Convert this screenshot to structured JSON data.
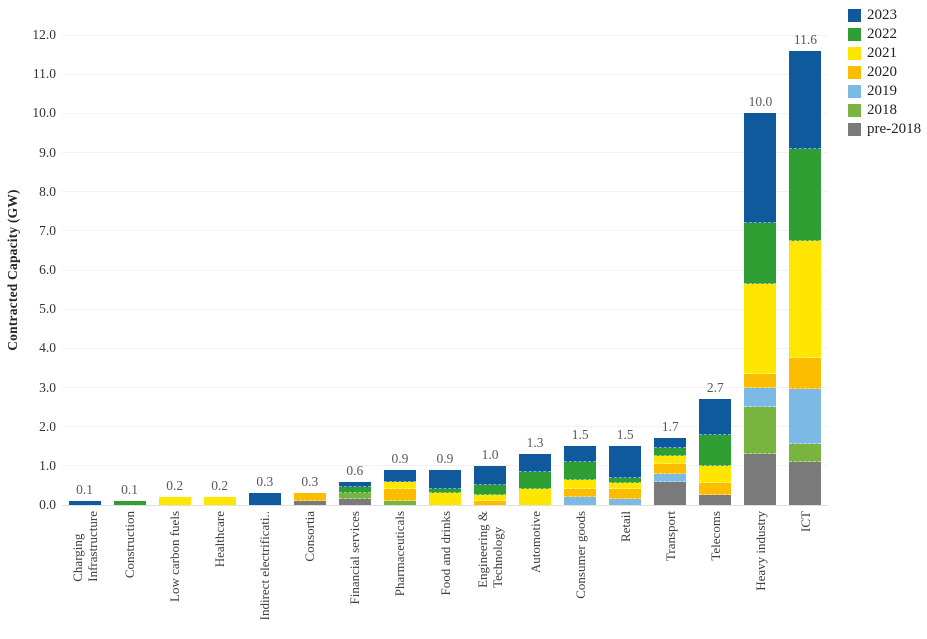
{
  "figure": {
    "background": "#ffffff",
    "grid_color": "#f2f2f2",
    "baseline_color": "#e0e0e0"
  },
  "chart_data": {
    "type": "bar",
    "stacked": true,
    "title": "",
    "xlabel": "",
    "ylabel": "Contracted Capacity (GW)",
    "ylim": [
      0,
      12
    ],
    "ytick_step": 1,
    "yticks": [
      "0.0",
      "1.0",
      "2.0",
      "3.0",
      "4.0",
      "5.0",
      "6.0",
      "7.0",
      "8.0",
      "9.0",
      "10.0",
      "11.0",
      "12.0"
    ],
    "grid": "horizontal",
    "legend_position": "top-right",
    "categories": [
      "Charging\nInfrastructure",
      "Construction",
      "Low carbon fuels",
      "Healthcare",
      "Indirect electrificati..",
      "Consortia",
      "Financial services",
      "Pharmaceuticals",
      "Food and drinks",
      "Engineering &\nTechnology",
      "Automotive",
      "Consumer goods",
      "Retail",
      "Transport",
      "Telecoms",
      "Heavy industry",
      "ICT"
    ],
    "totals": [
      "0.1",
      "0.1",
      "0.2",
      "0.2",
      "0.3",
      "0.3",
      "0.6",
      "0.9",
      "0.9",
      "1.0",
      "1.3",
      "1.5",
      "1.5",
      "1.7",
      "2.7",
      "10.0",
      "11.6"
    ],
    "series": [
      {
        "name": "2023",
        "color": "#0e5a9c",
        "values": [
          0.1,
          0,
          0,
          0,
          0.3,
          0,
          0.15,
          0.3,
          0.5,
          0.5,
          0.45,
          0.4,
          0.8,
          0.25,
          0.9,
          2.8,
          2.5
        ]
      },
      {
        "name": "2022",
        "color": "#2f9e33",
        "values": [
          0,
          0.1,
          0,
          0,
          0,
          0,
          0.15,
          0,
          0.1,
          0.25,
          0.45,
          0.45,
          0.15,
          0.2,
          0.8,
          1.55,
          2.35
        ]
      },
      {
        "name": "2021",
        "color": "#fee600",
        "values": [
          0,
          0,
          0.2,
          0.2,
          0,
          0,
          0,
          0.2,
          0.3,
          0.15,
          0.4,
          0.25,
          0.15,
          0.2,
          0.45,
          2.3,
          3.0
        ]
      },
      {
        "name": "2020",
        "color": "#fcbd00",
        "values": [
          0,
          0,
          0,
          0,
          0,
          0.2,
          0,
          0.3,
          0,
          0.1,
          0,
          0.2,
          0.25,
          0.25,
          0.3,
          0.35,
          0.8
        ]
      },
      {
        "name": "2019",
        "color": "#7cb9e5",
        "values": [
          0,
          0,
          0,
          0,
          0,
          0,
          0,
          0,
          0,
          0,
          0,
          0.2,
          0.15,
          0.2,
          0,
          0.5,
          1.4
        ]
      },
      {
        "name": "2018",
        "color": "#79b441",
        "values": [
          0,
          0,
          0,
          0,
          0,
          0,
          0.15,
          0.1,
          0,
          0,
          0,
          0,
          0,
          0,
          0,
          1.2,
          0.45
        ]
      },
      {
        "name": "pre-2018",
        "color": "#7a7a7a",
        "values": [
          0,
          0,
          0,
          0,
          0,
          0.1,
          0.15,
          0,
          0,
          0,
          0,
          0,
          0,
          0.6,
          0.25,
          1.3,
          1.1
        ]
      }
    ]
  }
}
